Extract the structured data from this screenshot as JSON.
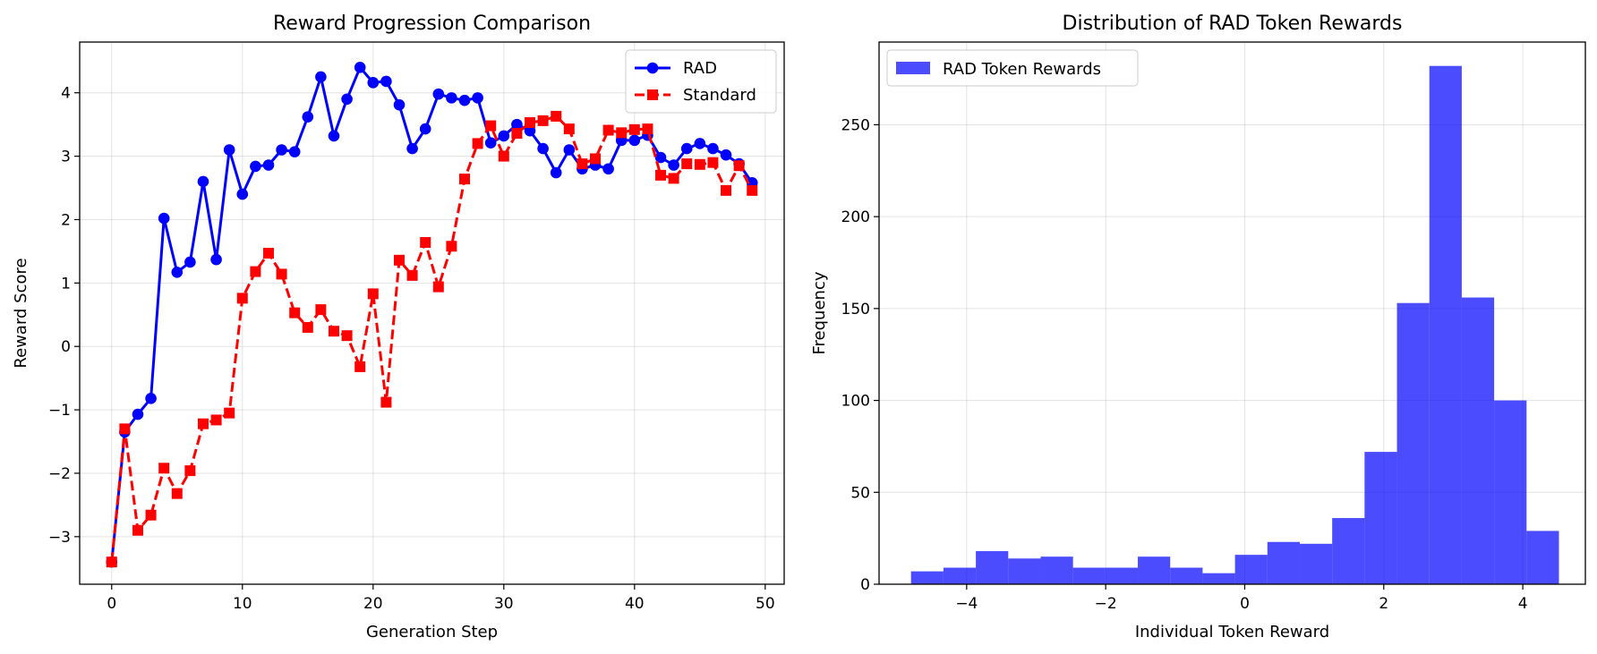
{
  "chart_data": [
    {
      "type": "line",
      "title": "Reward Progression Comparison",
      "xlabel": "Generation Step",
      "ylabel": "Reward Score",
      "xlim": [
        -2.45,
        51.45
      ],
      "ylim": [
        -3.75,
        4.8
      ],
      "xticks": [
        0,
        10,
        20,
        30,
        40,
        50
      ],
      "yticks": [
        -3,
        -2,
        -1,
        0,
        1,
        2,
        3,
        4
      ],
      "grid": true,
      "legend": "top-right",
      "x": [
        0,
        1,
        2,
        3,
        4,
        5,
        6,
        7,
        8,
        9,
        10,
        11,
        12,
        13,
        14,
        15,
        16,
        17,
        18,
        19,
        20,
        21,
        22,
        23,
        24,
        25,
        26,
        27,
        28,
        29,
        30,
        31,
        32,
        33,
        34,
        35,
        36,
        37,
        38,
        39,
        40,
        41,
        42,
        43,
        44,
        45,
        46,
        47,
        48,
        49
      ],
      "series": [
        {
          "name": "RAD",
          "color": "#0000ff",
          "style": "solid",
          "marker": "circle",
          "values": [
            -3.4,
            -1.35,
            -1.07,
            -0.82,
            2.02,
            1.17,
            1.33,
            2.6,
            1.37,
            3.1,
            2.4,
            2.84,
            2.86,
            3.1,
            3.07,
            3.62,
            4.25,
            3.32,
            3.9,
            4.4,
            4.16,
            4.18,
            3.81,
            3.12,
            3.43,
            3.98,
            3.92,
            3.88,
            3.92,
            3.21,
            3.32,
            3.5,
            3.4,
            3.12,
            2.74,
            3.1,
            2.8,
            2.86,
            2.8,
            3.25,
            3.25,
            3.33,
            2.98,
            2.86,
            3.12,
            3.2,
            3.12,
            3.02,
            2.88,
            2.58
          ]
        },
        {
          "name": "Standard",
          "color": "#ff0000",
          "style": "dashed",
          "marker": "square",
          "values": [
            -3.4,
            -1.3,
            -2.9,
            -2.66,
            -1.92,
            -2.32,
            -1.96,
            -1.22,
            -1.16,
            -1.05,
            0.76,
            1.18,
            1.47,
            1.14,
            0.53,
            0.3,
            0.58,
            0.24,
            0.17,
            -0.32,
            0.83,
            -0.88,
            1.36,
            1.12,
            1.64,
            0.94,
            1.58,
            2.64,
            3.2,
            3.48,
            3.0,
            3.36,
            3.53,
            3.56,
            3.63,
            3.43,
            2.88,
            2.96,
            3.41,
            3.37,
            3.42,
            3.43,
            2.7,
            2.65,
            2.88,
            2.87,
            2.9,
            2.46,
            2.85,
            2.46
          ]
        }
      ]
    },
    {
      "type": "bar",
      "subtype": "histogram",
      "title": "Distribution of RAD Token Rewards",
      "xlabel": "Individual Token Reward",
      "ylabel": "Frequency",
      "xlim": [
        -5.26,
        4.9
      ],
      "ylim": [
        0,
        295
      ],
      "xticks": [
        -4,
        -2,
        0,
        2,
        4
      ],
      "yticks": [
        0,
        50,
        100,
        150,
        200,
        250
      ],
      "grid": true,
      "legend": "top-left",
      "series": [
        {
          "name": "RAD Token Rewards",
          "color": "#0000ff",
          "opacity": 0.7,
          "bin_start": -4.8,
          "bin_width": 0.466,
          "values": [
            7,
            9,
            18,
            14,
            15,
            9,
            9,
            15,
            9,
            6,
            16,
            23,
            22,
            36,
            72,
            153,
            282,
            156,
            100,
            29
          ]
        }
      ]
    }
  ]
}
